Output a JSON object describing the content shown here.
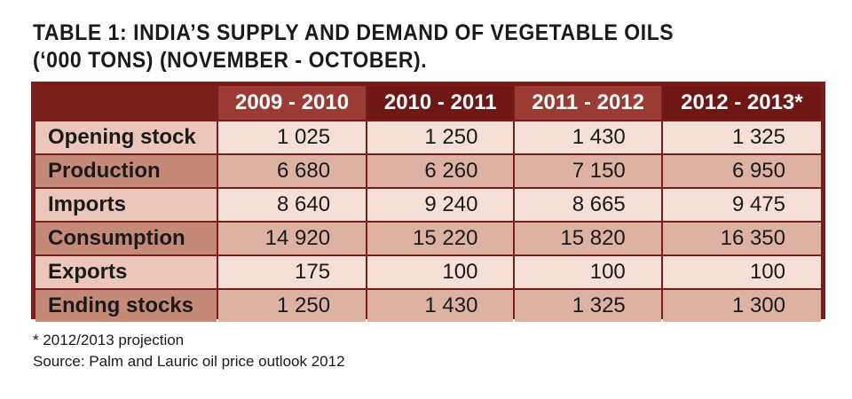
{
  "title_line1": "TABLE 1: INDIA’S SUPPLY AND DEMAND OF VEGETABLE OILS",
  "title_line2": "(‘000 TONS) (NOVEMBER - OCTOBER).",
  "columns": [
    "",
    "2009 - 2010",
    "2010 - 2011",
    "2011 - 2012",
    "2012 - 2013*"
  ],
  "rows": [
    {
      "label": "Opening stock",
      "values": [
        "1 025",
        "1 250",
        "1 430",
        "1 325"
      ]
    },
    {
      "label": "Production",
      "values": [
        "6 680",
        "6 260",
        "7 150",
        "6 950"
      ]
    },
    {
      "label": "Imports",
      "values": [
        "8 640",
        "9 240",
        "8 665",
        "9 475"
      ]
    },
    {
      "label": "Consumption",
      "values": [
        "14 920",
        "15 220",
        "15 820",
        "16 350"
      ]
    },
    {
      "label": "Exports",
      "values": [
        "175",
        "100",
        "100",
        "100"
      ]
    },
    {
      "label": "Ending stocks",
      "values": [
        "1 250",
        "1 430",
        "1 325",
        "1 300"
      ]
    }
  ],
  "footnote": "* 2012/2013 projection",
  "source": "Source: Palm and Lauric oil price outlook 2012",
  "colors": {
    "frame": "#7a1e1c",
    "header_light": "#9b3b33",
    "header_dark": "#6e1714",
    "row_light": "#f5dfd6",
    "row_dark": "#ddb2a3"
  }
}
